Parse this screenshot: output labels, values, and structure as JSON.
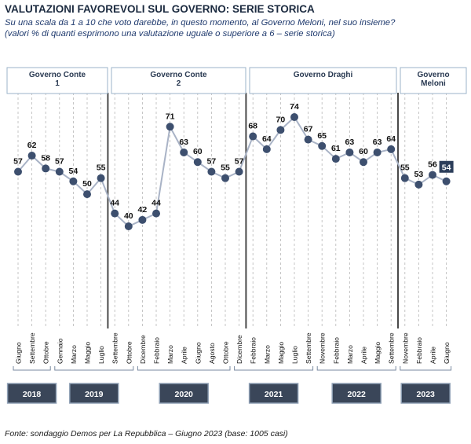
{
  "header": {
    "title": "VALUTAZIONI FAVOREVOLI SUL GOVERNO: SERIE STORICA",
    "subtitle_line1": "Su una scala da 1 a 10 che voto darebbe, in questo momento, al Governo Meloni, nel suo insieme?",
    "subtitle_line2": "(valori % di quanti esprimono una valutazione uguale o superiore a 6 – serie storica)"
  },
  "footer": {
    "source": "Fonte: sondaggio Demos per La Repubblica – Giugno 2023 (base: 1005 casi)"
  },
  "colors": {
    "marker": "#3d4f6e",
    "line": "#a9b3c6",
    "year_box": "#3a4659",
    "gov_box_border": "#9bb3c9",
    "separator": "#4a4a4a",
    "highlight_box": "#2b3d5a"
  },
  "chart_data": {
    "type": "line",
    "title": "VALUTAZIONI FAVOREVOLI SUL GOVERNO: SERIE STORICA",
    "ylabel": "",
    "xlabel": "",
    "grid": "vertical dashed",
    "x": [
      "Giugno",
      "Settembre",
      "Ottobre",
      "Gennaio",
      "Marzo",
      "Maggio",
      "Luglio",
      "Settembre",
      "Ottobre",
      "Dicembre",
      "Febbraio",
      "Marzo",
      "Aprile",
      "Giugno",
      "Agosto",
      "Ottobre",
      "Dicembre",
      "Febbraio",
      "Marzo",
      "Maggio",
      "Luglio",
      "Settembre",
      "Novembre",
      "Febbraio",
      "Marzo",
      "Aprile",
      "Maggio",
      "Settembre",
      "Novembre",
      "Febbraio",
      "Aprile",
      "Giugno"
    ],
    "series": [
      {
        "values": [
          57,
          62,
          58,
          57,
          54,
          50,
          55,
          44,
          40,
          42,
          44,
          71,
          63,
          60,
          57,
          55,
          57,
          68,
          64,
          70,
          74,
          67,
          65,
          61,
          63,
          60,
          63,
          64,
          55,
          53,
          56,
          54
        ]
      }
    ],
    "highlighted_last_value": 54,
    "governments": [
      {
        "name": "Governo Conte 1",
        "line1": "Governo Conte",
        "line2": "1",
        "start_index": 0,
        "end_index": 6
      },
      {
        "name": "Governo Conte 2",
        "line1": "Governo Conte",
        "line2": "2",
        "start_index": 7,
        "end_index": 16
      },
      {
        "name": "Governo Draghi",
        "line1": "Governo Draghi",
        "line2": "",
        "start_index": 17,
        "end_index": 27
      },
      {
        "name": "Governo Meloni",
        "line1": "Governo",
        "line2": "Meloni",
        "start_index": 28,
        "end_index": 31
      }
    ],
    "years": [
      {
        "label": "2018",
        "start_index": 0,
        "end_index": 2
      },
      {
        "label": "2019",
        "start_index": 3,
        "end_index": 8
      },
      {
        "label": "2020",
        "start_index": 9,
        "end_index": 15
      },
      {
        "label": "2021",
        "start_index": 16,
        "end_index": 21
      },
      {
        "label": "2022",
        "start_index": 22,
        "end_index": 27
      },
      {
        "label": "2023",
        "start_index": 28,
        "end_index": 31
      }
    ]
  }
}
